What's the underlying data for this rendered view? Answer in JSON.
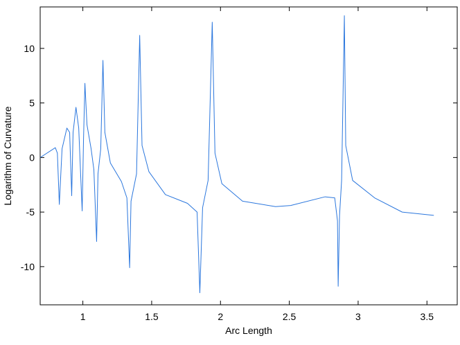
{
  "chart_data": {
    "type": "line",
    "xlabel": "Arc Length",
    "ylabel": "Logarithm of Curvature",
    "color": "#2a76dd",
    "x": [
      0.69,
      0.8,
      0.815,
      0.829,
      0.849,
      0.884,
      0.904,
      0.919,
      0.929,
      0.95,
      0.97,
      0.995,
      1.005,
      1.015,
      1.03,
      1.06,
      1.08,
      1.1,
      1.11,
      1.13,
      1.146,
      1.16,
      1.2,
      1.28,
      1.32,
      1.34,
      1.35,
      1.39,
      1.413,
      1.43,
      1.48,
      1.6,
      1.76,
      1.83,
      1.85,
      1.87,
      1.91,
      1.94,
      1.96,
      2.01,
      2.16,
      2.4,
      2.51,
      2.76,
      2.83,
      2.85,
      2.855,
      2.865,
      2.88,
      2.9,
      2.91,
      2.96,
      3.12,
      3.32,
      3.55
    ],
    "values": [
      0,
      0.9,
      0.4,
      -4.3,
      0.8,
      2.7,
      2.3,
      -3.5,
      2.3,
      4.6,
      2.7,
      -4.9,
      1.7,
      6.8,
      3.0,
      0.8,
      -1.1,
      -7.7,
      -1.5,
      0.8,
      8.9,
      2.3,
      -0.5,
      -2.2,
      -3.7,
      -10.1,
      -4.0,
      -1.5,
      11.2,
      1.1,
      -1.3,
      -3.4,
      -4.2,
      -5.0,
      -12.4,
      -4.6,
      -2.1,
      12.4,
      0.4,
      -2.4,
      -4.0,
      -4.5,
      -4.4,
      -3.6,
      -3.7,
      -5.8,
      -11.8,
      -5.3,
      -2.1,
      13.0,
      1.1,
      -2.1,
      -3.7,
      -5.0,
      -5.3
    ],
    "xlim": [
      0.69,
      3.72
    ],
    "ylim": [
      -13.5,
      13.8
    ],
    "xticks": [
      1,
      1.5,
      2,
      2.5,
      3,
      3.5
    ],
    "yticks": [
      -10,
      -5,
      0,
      5,
      10
    ]
  }
}
